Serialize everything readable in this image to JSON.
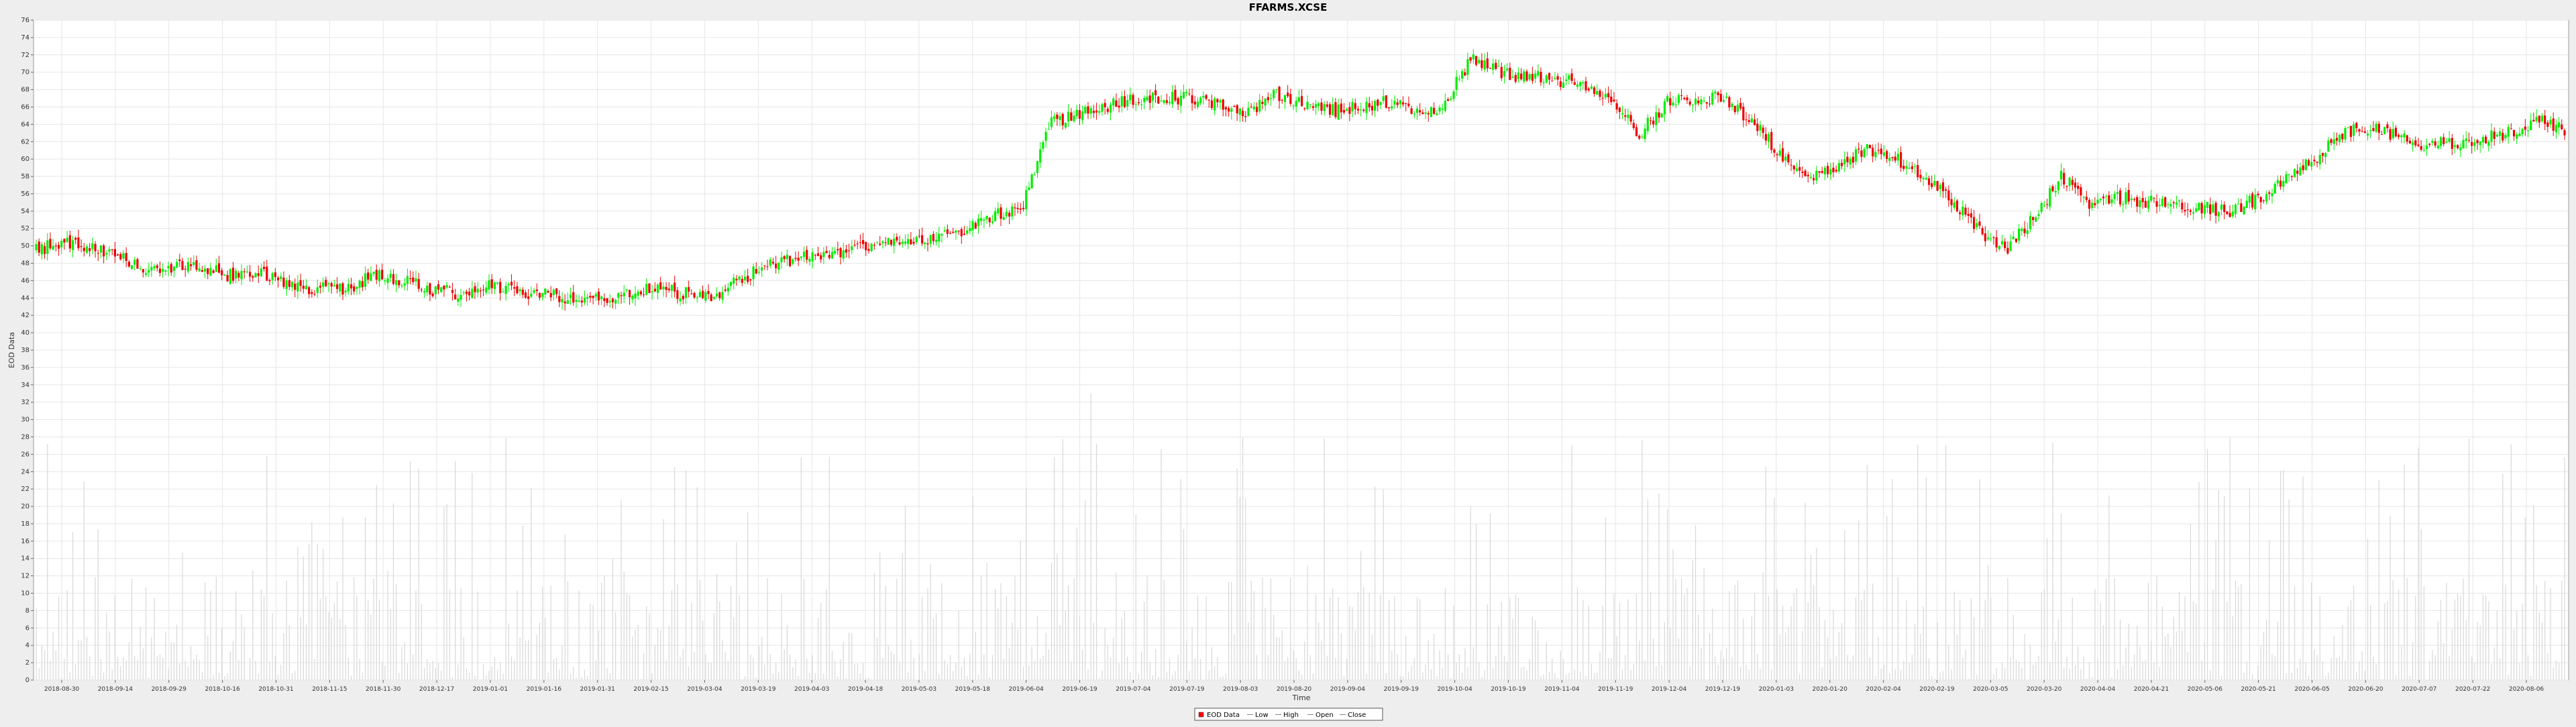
{
  "chart_data": {
    "type": "candlestick",
    "title": "FFARMS.XCSE",
    "xlabel": "Time",
    "ylabel": "EOD Data",
    "ylim": [
      0,
      76
    ],
    "y_tick_step": 2,
    "x_tick_labels": [
      "2018-08-30",
      "2018-09-14",
      "2018-09-29",
      "2018-10-16",
      "2018-10-31",
      "2018-11-15",
      "2018-11-30",
      "2018-12-17",
      "2019-01-01",
      "2019-01-16",
      "2019-01-31",
      "2019-02-15",
      "2019-03-04",
      "2019-03-19",
      "2019-04-03",
      "2019-04-18",
      "2019-05-03",
      "2019-05-18",
      "2019-06-04",
      "2019-06-19",
      "2019-07-04",
      "2019-07-19",
      "2019-08-03",
      "2019-08-20",
      "2019-09-04",
      "2019-09-19",
      "2019-10-04",
      "2019-10-19",
      "2019-11-04",
      "2019-11-19",
      "2019-12-04",
      "2019-12-19",
      "2020-01-03",
      "2020-01-20",
      "2020-02-04",
      "2020-02-19",
      "2020-03-05",
      "2020-03-20",
      "2020-04-04",
      "2020-04-21",
      "2020-05-06",
      "2020-05-21",
      "2020-06-05",
      "2020-06-20",
      "2020-07-07",
      "2020-07-22",
      "2020-08-06"
    ],
    "legend": {
      "position": "bottom-center",
      "entries": [
        {
          "label": "EOD Data",
          "color": "#ff0000",
          "kind": "box"
        },
        {
          "label": "Low",
          "color": "#888888",
          "kind": "line"
        },
        {
          "label": "High",
          "color": "#888888",
          "kind": "line"
        },
        {
          "label": "Open",
          "color": "#888888",
          "kind": "line"
        },
        {
          "label": "Close",
          "color": "#888888",
          "kind": "line"
        }
      ]
    },
    "colors": {
      "up": "#00ee00",
      "down": "#ee0000",
      "volume": "#d8d8d8",
      "grid": "#e6e6e6"
    },
    "close_anchors": [
      [
        0,
        49.5
      ],
      [
        10,
        50.5
      ],
      [
        20,
        49.8
      ],
      [
        30,
        48.5
      ],
      [
        40,
        47.2
      ],
      [
        50,
        47.8
      ],
      [
        60,
        47.5
      ],
      [
        70,
        46.5
      ],
      [
        80,
        46.8
      ],
      [
        90,
        45.5
      ],
      [
        100,
        45
      ],
      [
        110,
        45
      ],
      [
        120,
        46.5
      ],
      [
        130,
        46
      ],
      [
        140,
        45
      ],
      [
        150,
        44.5
      ],
      [
        160,
        45.5
      ],
      [
        170,
        44.8
      ],
      [
        180,
        44.5
      ],
      [
        190,
        44
      ],
      [
        200,
        43.8
      ],
      [
        210,
        44.5
      ],
      [
        220,
        45
      ],
      [
        230,
        44.6
      ],
      [
        240,
        44
      ],
      [
        250,
        46
      ],
      [
        260,
        48
      ],
      [
        270,
        48.5
      ],
      [
        280,
        49
      ],
      [
        290,
        49.5
      ],
      [
        300,
        50.5
      ],
      [
        310,
        50
      ],
      [
        320,
        51
      ],
      [
        330,
        52
      ],
      [
        340,
        53.5
      ],
      [
        350,
        54
      ],
      [
        360,
        64
      ],
      [
        370,
        65
      ],
      [
        380,
        66
      ],
      [
        390,
        67
      ],
      [
        400,
        67.2
      ],
      [
        410,
        67
      ],
      [
        420,
        66.2
      ],
      [
        430,
        65
      ],
      [
        440,
        67.5
      ],
      [
        450,
        66.5
      ],
      [
        460,
        65.5
      ],
      [
        470,
        66
      ],
      [
        480,
        66.5
      ],
      [
        490,
        65.5
      ],
      [
        500,
        66
      ],
      [
        510,
        71.5
      ],
      [
        520,
        70
      ],
      [
        530,
        69.5
      ],
      [
        540,
        69.2
      ],
      [
        550,
        68.5
      ],
      [
        560,
        66.5
      ],
      [
        570,
        63
      ],
      [
        580,
        66.5
      ],
      [
        590,
        67
      ],
      [
        600,
        67
      ],
      [
        610,
        64.5
      ],
      [
        620,
        60.5
      ],
      [
        630,
        58
      ],
      [
        640,
        59
      ],
      [
        650,
        61
      ],
      [
        660,
        60.5
      ],
      [
        670,
        58.2
      ],
      [
        680,
        55.5
      ],
      [
        690,
        52
      ],
      [
        700,
        49.5
      ],
      [
        710,
        53
      ],
      [
        720,
        58
      ],
      [
        730,
        55
      ],
      [
        740,
        55.5
      ],
      [
        750,
        55.2
      ],
      [
        760,
        54.8
      ],
      [
        770,
        54.5
      ],
      [
        780,
        53.8
      ],
      [
        790,
        55.5
      ],
      [
        800,
        57.5
      ],
      [
        810,
        60
      ],
      [
        820,
        63
      ],
      [
        830,
        63.5
      ],
      [
        840,
        62.5
      ],
      [
        850,
        61.5
      ],
      [
        860,
        62
      ],
      [
        870,
        62.5
      ],
      [
        880,
        63
      ],
      [
        890,
        64.5
      ],
      [
        899,
        63.5
      ]
    ],
    "ohlc_note": "Daily OHLC candles for 900 trading days, close prices follow close_anchors; daily volume bars drawn in light grey."
  }
}
